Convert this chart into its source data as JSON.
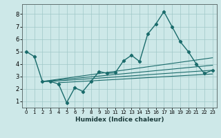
{
  "title": "",
  "xlabel": "Humidex (Indice chaleur)",
  "xlim": [
    -0.5,
    23.5
  ],
  "ylim": [
    0.5,
    8.8
  ],
  "xticks": [
    0,
    1,
    2,
    3,
    4,
    5,
    6,
    7,
    8,
    9,
    10,
    11,
    12,
    13,
    14,
    15,
    16,
    17,
    18,
    19,
    20,
    21,
    22,
    23
  ],
  "yticks": [
    1,
    2,
    3,
    4,
    5,
    6,
    7,
    8
  ],
  "bg_color": "#cde8e8",
  "grid_color": "#a0c8c8",
  "line_color": "#1a6b6b",
  "main_x": [
    0,
    1,
    2,
    3,
    4,
    5,
    6,
    7,
    8,
    9,
    10,
    11,
    12,
    13,
    14,
    15,
    16,
    17,
    18,
    19,
    20,
    21,
    22,
    23
  ],
  "main_y": [
    5.0,
    4.6,
    2.6,
    2.6,
    2.4,
    0.9,
    2.1,
    1.8,
    2.6,
    3.4,
    3.25,
    3.3,
    4.25,
    4.7,
    4.2,
    6.4,
    7.2,
    8.2,
    7.0,
    5.8,
    5.0,
    4.0,
    3.25,
    3.5
  ],
  "trend_lines": [
    {
      "x0": 2,
      "y0": 2.6,
      "x1": 23,
      "y1": 4.5
    },
    {
      "x0": 2,
      "y0": 2.6,
      "x1": 23,
      "y1": 3.9
    },
    {
      "x0": 3,
      "y0": 2.6,
      "x1": 23,
      "y1": 3.5
    },
    {
      "x0": 4,
      "y0": 2.5,
      "x1": 23,
      "y1": 3.2
    }
  ]
}
